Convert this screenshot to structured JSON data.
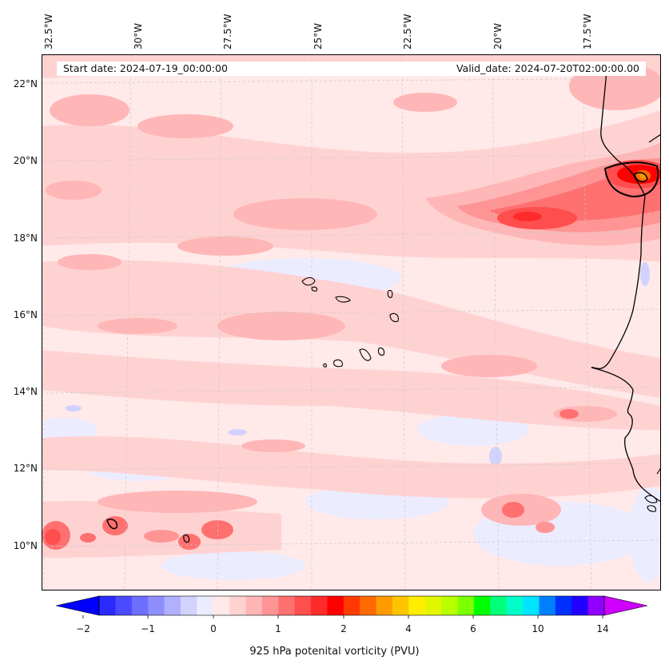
{
  "map": {
    "start_date": "Start date: 2024-07-19_00:00:00",
    "valid_date": "Valid_date: 2024-07-20T02:00:00.00",
    "lon_labels": [
      "32.5°W",
      "30°W",
      "27.5°W",
      "25°W",
      "22.5°W",
      "20°W",
      "17.5°W"
    ],
    "lat_labels": [
      "22°N",
      "20°N",
      "18°N",
      "16°N",
      "14°N",
      "12°N",
      "10°N"
    ],
    "region": {
      "lon_range": [
        "32.5°W",
        "15.5°W"
      ],
      "lat_range": [
        "8.9°N",
        "22.8°N"
      ],
      "features": [
        "Cabo Verde islands",
        "West African coastline",
        "PV maximum near 19.5°N 16°W"
      ]
    }
  },
  "colorbar": {
    "title": "925 hPa potenital vorticity (PVU)",
    "tick_labels": [
      "−2",
      "−1",
      "0",
      "1",
      "2",
      "4",
      "6",
      "10",
      "14"
    ],
    "colors": [
      "#0000ff",
      "#2a2aff",
      "#4a4aff",
      "#6e6eff",
      "#8e8eff",
      "#b0b0ff",
      "#d2d2ff",
      "#ececff",
      "#ffe9e9",
      "#ffd2d2",
      "#ffb6b6",
      "#ff9494",
      "#ff7070",
      "#ff4e4e",
      "#ff2a2a",
      "#ff0000",
      "#ff3a00",
      "#ff6a00",
      "#ff9a00",
      "#ffc400",
      "#ffee00",
      "#e2f600",
      "#b8ff00",
      "#7cff00",
      "#00ff00",
      "#00ff7a",
      "#00ffc8",
      "#00e4ff",
      "#0080ff",
      "#0030ff",
      "#2200ff",
      "#9000ff",
      "#d000ff"
    ],
    "extend": "both"
  }
}
